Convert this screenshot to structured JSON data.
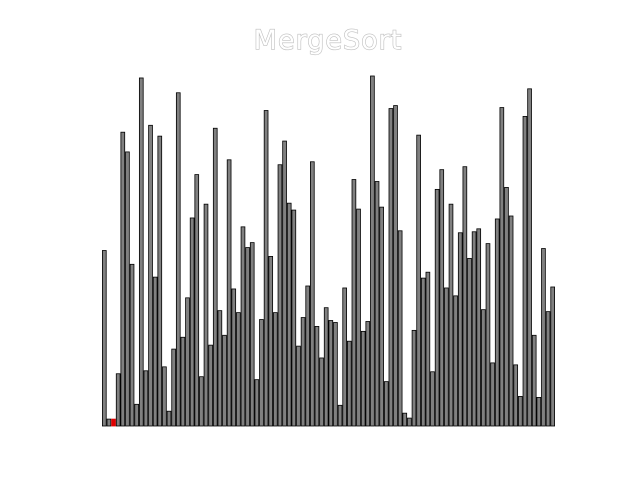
{
  "chart_data": {
    "type": "bar",
    "title": "MergeSort",
    "xlabel": "",
    "ylabel": "",
    "axes_visible": false,
    "grid": false,
    "ylim": [
      0,
      355
    ],
    "colors": {
      "bar": "#808080",
      "bar_edge": "#000000",
      "highlight": "#e00000",
      "background": "#ffffff"
    },
    "highlight_index": 2,
    "values": [
      178,
      7,
      7,
      53,
      298,
      278,
      164,
      22,
      353,
      56,
      305,
      151,
      294,
      60,
      15,
      78,
      338,
      90,
      130,
      211,
      255,
      50,
      225,
      82,
      302,
      117,
      92,
      270,
      139,
      115,
      202,
      181,
      186,
      47,
      108,
      320,
      172,
      115,
      265,
      289,
      226,
      219,
      81,
      110,
      142,
      268,
      101,
      69,
      120,
      107,
      105,
      21,
      140,
      86,
      250,
      220,
      96,
      106,
      355,
      248,
      222,
      45,
      322,
      325,
      198,
      13,
      8,
      97,
      295,
      150,
      156,
      55,
      240,
      260,
      140,
      225,
      132,
      196,
      263,
      170,
      197,
      200,
      118,
      185,
      64,
      210,
      323,
      242,
      213,
      62,
      30,
      314,
      342,
      92,
      29,
      180,
      116,
      141
    ]
  }
}
